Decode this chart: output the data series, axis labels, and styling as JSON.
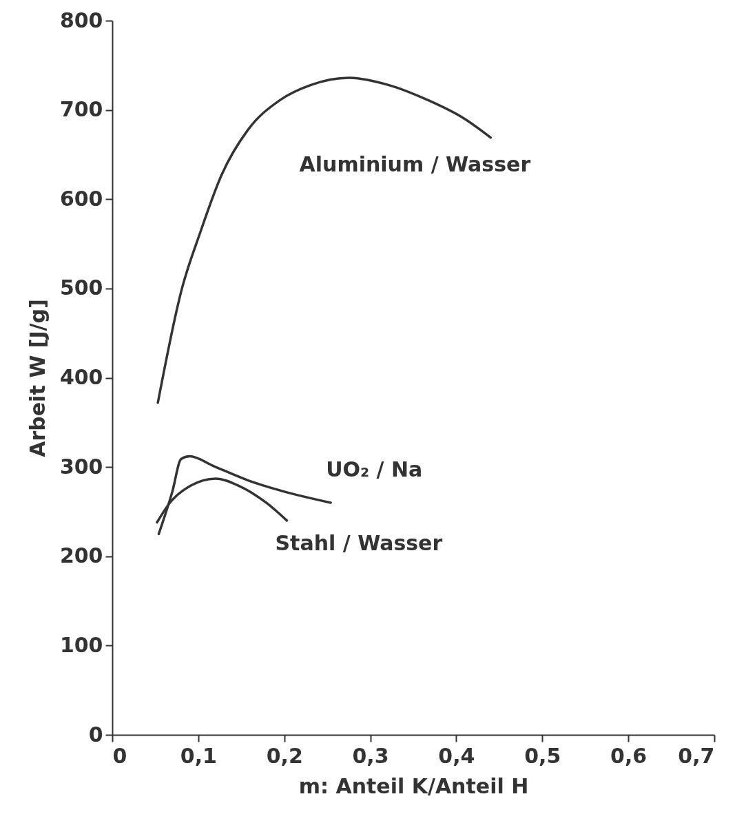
{
  "chart_data": {
    "type": "line",
    "xlabel": "m: Anteil K/Anteil H",
    "ylabel": "Arbeit W [J/g]",
    "xlim": [
      0,
      0.7
    ],
    "xticks": [
      {
        "value": 0,
        "label": "0"
      },
      {
        "value": 0.1,
        "label": "0,1"
      },
      {
        "value": 0.2,
        "label": "0,2"
      },
      {
        "value": 0.3,
        "label": "0,3"
      },
      {
        "value": 0.4,
        "label": "0,4"
      },
      {
        "value": 0.5,
        "label": "0,5"
      },
      {
        "value": 0.6,
        "label": "0,6"
      },
      {
        "value": 0.7,
        "label": "0,7"
      }
    ],
    "ylim": [
      0,
      800
    ],
    "yticks": [
      0,
      100,
      200,
      300,
      400,
      500,
      600,
      700,
      800
    ],
    "grid": false,
    "line_style": "solid",
    "series": [
      {
        "name": "Aluminium / Wasser",
        "color": "#333333",
        "x": [
          0.053,
          0.081,
          0.102,
          0.127,
          0.158,
          0.195,
          0.231,
          0.275,
          0.321,
          0.367,
          0.408,
          0.44
        ],
        "values": [
          372,
          500,
          562,
          627,
          678,
          711,
          728,
          736,
          728,
          711,
          691,
          669
        ]
      },
      {
        "name": "UO₂ / Na",
        "color": "#333333",
        "x": [
          0.054,
          0.07,
          0.08,
          0.09,
          0.118,
          0.158,
          0.198,
          0.254
        ],
        "values": [
          225,
          273,
          309,
          312,
          301,
          285,
          273,
          260
        ]
      },
      {
        "name": "Stahl / Wasser",
        "color": "#333333",
        "x": [
          0.052,
          0.067,
          0.091,
          0.12,
          0.147,
          0.179,
          0.203
        ],
        "values": [
          238,
          260,
          279,
          287,
          279,
          260,
          240
        ]
      }
    ]
  }
}
